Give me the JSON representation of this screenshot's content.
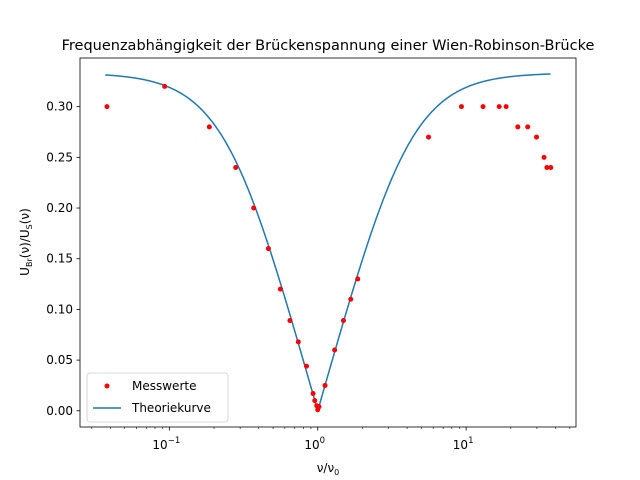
{
  "chart_data": {
    "type": "scatter",
    "title": "Frequenzabhängigkeit der Brückenspannung einer Wien-Robinson-Brücke",
    "xlabel": {
      "base": "ν/ν",
      "sub": "0"
    },
    "ylabel": {
      "p1": "U",
      "sub1": "Br",
      "p2": "(ν)/U",
      "sub2": "S",
      "p3": "(ν)"
    },
    "x_scale": "log",
    "xlim": [
      0.025,
      55
    ],
    "ylim": [
      -0.016,
      0.348
    ],
    "x_ticks": [
      {
        "value": 0.1,
        "base": "10",
        "exp": "−1"
      },
      {
        "value": 1,
        "base": "10",
        "exp": "0"
      },
      {
        "value": 10,
        "base": "10",
        "exp": "1"
      }
    ],
    "y_ticks": [
      {
        "value": 0.0,
        "label": "0.00"
      },
      {
        "value": 0.05,
        "label": "0.05"
      },
      {
        "value": 0.1,
        "label": "0.10"
      },
      {
        "value": 0.15,
        "label": "0.15"
      },
      {
        "value": 0.2,
        "label": "0.20"
      },
      {
        "value": 0.25,
        "label": "0.25"
      },
      {
        "value": 0.3,
        "label": "0.30"
      }
    ],
    "grid": false,
    "legend_position": "lower-left",
    "series": [
      {
        "name": "Messwerte",
        "kind": "points",
        "color": "#ff0000",
        "points": [
          [
            0.038,
            0.3
          ],
          [
            0.093,
            0.32
          ],
          [
            0.186,
            0.28
          ],
          [
            0.28,
            0.24
          ],
          [
            0.37,
            0.2
          ],
          [
            0.465,
            0.16
          ],
          [
            0.56,
            0.12
          ],
          [
            0.65,
            0.089
          ],
          [
            0.74,
            0.068
          ],
          [
            0.84,
            0.044
          ],
          [
            0.93,
            0.017
          ],
          [
            0.955,
            0.01
          ],
          [
            0.985,
            0.005
          ],
          [
            1.0,
            0.001
          ],
          [
            1.02,
            0.004
          ],
          [
            1.12,
            0.025
          ],
          [
            1.3,
            0.06
          ],
          [
            1.49,
            0.089
          ],
          [
            1.67,
            0.11
          ],
          [
            1.86,
            0.13
          ],
          [
            5.58,
            0.27
          ],
          [
            9.3,
            0.3
          ],
          [
            13.0,
            0.3
          ],
          [
            16.7,
            0.3
          ],
          [
            18.6,
            0.3
          ],
          [
            22.3,
            0.28
          ],
          [
            26.0,
            0.28
          ],
          [
            29.8,
            0.27
          ],
          [
            33.5,
            0.25
          ],
          [
            35.0,
            0.24
          ],
          [
            37.2,
            0.24
          ]
        ]
      },
      {
        "name": "Theoriekurve",
        "kind": "line",
        "color": "#1f77b4",
        "formula": "sqrt((x^2-1)^2 / (9*((1-x^2)^2 + 9*x^2)))",
        "x_range": [
          0.037,
          37
        ]
      }
    ]
  }
}
